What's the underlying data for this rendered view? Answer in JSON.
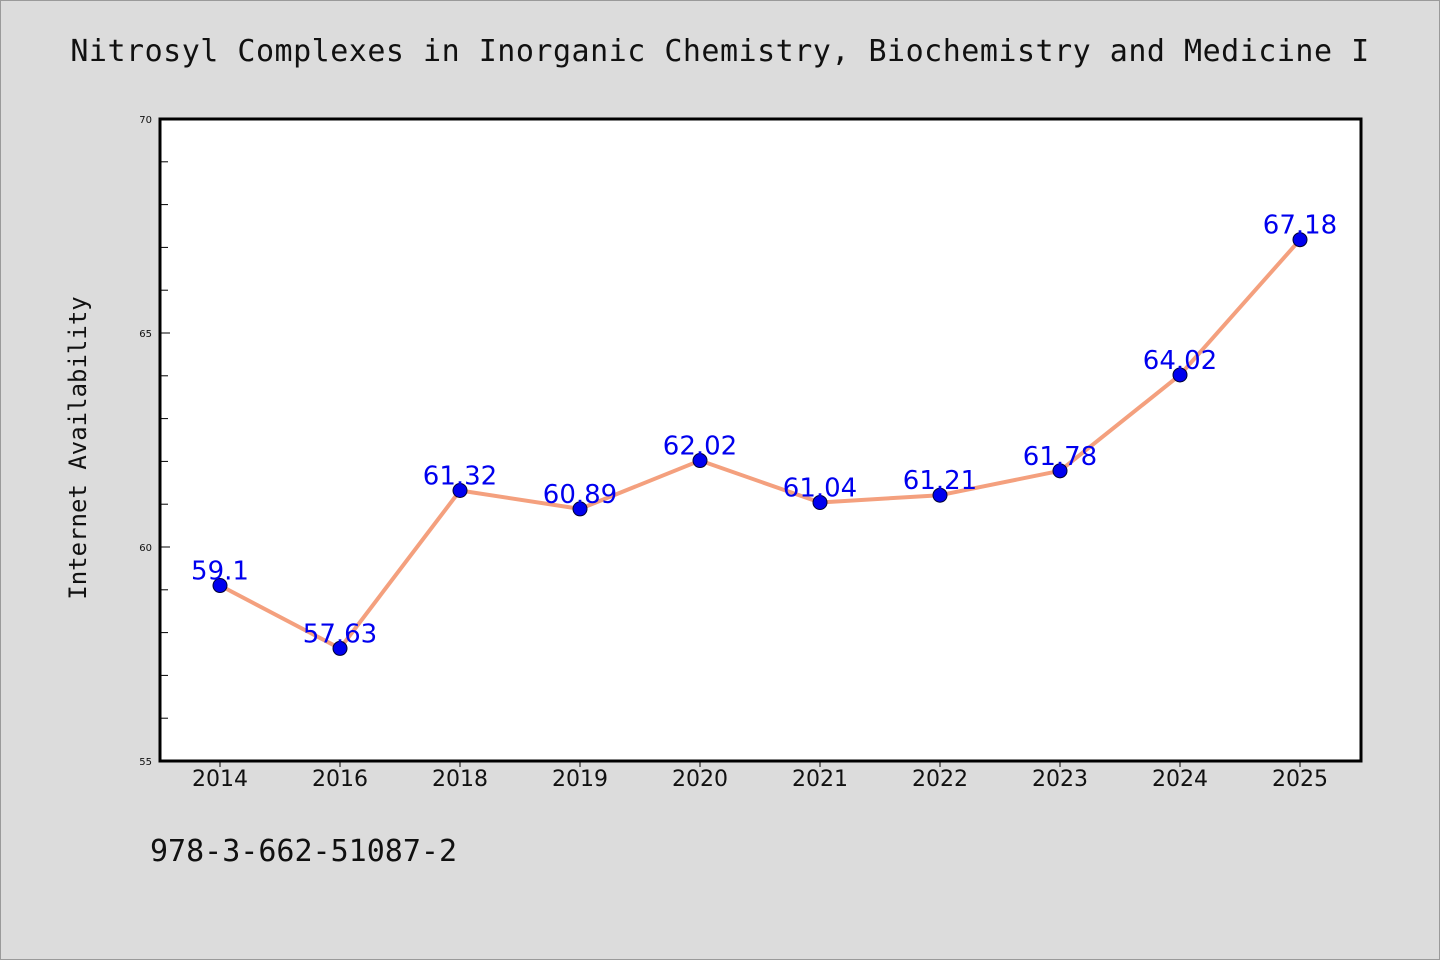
{
  "title": "Nitrosyl Complexes in Inorganic Chemistry, Biochemistry and Medicine I",
  "isbn": "978-3-662-51087-2",
  "chart_data": {
    "type": "line",
    "title": "Nitrosyl Complexes in Inorganic Chemistry, Biochemistry and Medicine I",
    "xlabel": "",
    "ylabel": "Internet Availability",
    "categories": [
      "2014",
      "2016",
      "2018",
      "2019",
      "2020",
      "2021",
      "2022",
      "2023",
      "2024",
      "2025"
    ],
    "series": [
      {
        "values": [
          59.1,
          57.63,
          61.32,
          60.89,
          62.02,
          61.04,
          61.21,
          61.78,
          64.02,
          67.18
        ],
        "labels": [
          "59.1",
          "57.63",
          "61.32",
          "60.89",
          "62.02",
          "61.04",
          "61.21",
          "61.78",
          "64.02",
          "67.18"
        ]
      }
    ],
    "ylim": [
      55,
      70
    ],
    "yticks": [
      "55",
      "60",
      "65",
      "70"
    ],
    "grid": false,
    "line_color": "#f4a07e",
    "marker_color": "#0000ee",
    "label_color": "#0000ee",
    "plot_background": "#ffffff",
    "page_background": "#dcdcdc"
  }
}
